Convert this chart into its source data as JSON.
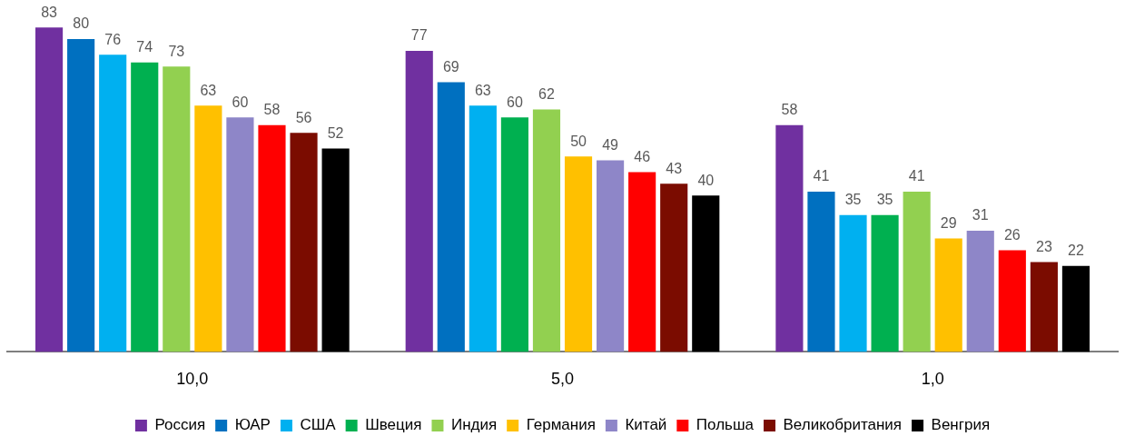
{
  "chart_data": {
    "type": "bar",
    "categories": [
      "10,0",
      "5,0",
      "1,0"
    ],
    "tick_labels": "x",
    "grid": false,
    "legend": "bottom",
    "data_labels": true,
    "series": [
      {
        "name": "Россия",
        "color": "#7030a0",
        "values": [
          83,
          77,
          58
        ]
      },
      {
        "name": "ЮАР",
        "color": "#0070c0",
        "values": [
          80,
          69,
          41
        ]
      },
      {
        "name": "США",
        "color": "#00b0f0",
        "values": [
          76,
          63,
          35
        ]
      },
      {
        "name": "Швеция",
        "color": "#00b050",
        "values": [
          74,
          60,
          35
        ]
      },
      {
        "name": "Индия",
        "color": "#92d050",
        "values": [
          73,
          62,
          41
        ]
      },
      {
        "name": "Германия",
        "color": "#ffc000",
        "values": [
          63,
          50,
          29
        ]
      },
      {
        "name": "Китай",
        "color": "#8e86c8",
        "values": [
          60,
          49,
          31
        ]
      },
      {
        "name": "Польша",
        "color": "#ff0000",
        "values": [
          58,
          46,
          26
        ]
      },
      {
        "name": "Великобритания",
        "color": "#7b0c00",
        "values": [
          56,
          43,
          23
        ]
      },
      {
        "name": "Венгрия",
        "color": "#000000",
        "values": [
          52,
          40,
          22
        ]
      }
    ]
  }
}
